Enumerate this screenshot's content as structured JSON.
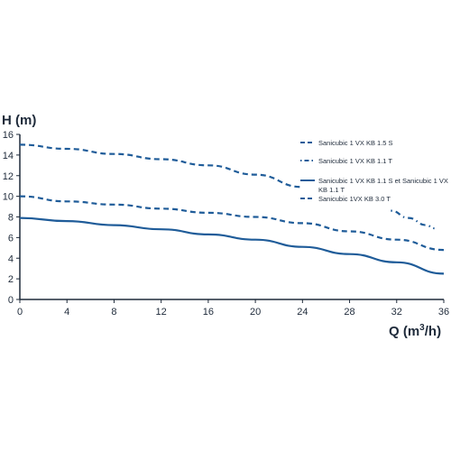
{
  "chart_data": {
    "type": "line",
    "ylabel": "H (m)",
    "xlabel_main": "Q (m",
    "xlabel_sup": "3",
    "xlabel_end": "/h)",
    "xlim": [
      0,
      36
    ],
    "ylim": [
      0,
      16
    ],
    "x_ticks": [
      "0",
      "4",
      "8",
      "12",
      "16",
      "20",
      "24",
      "28",
      "32",
      "36"
    ],
    "y_ticks": [
      "0",
      "2",
      "4",
      "6",
      "8",
      "10",
      "12",
      "14",
      "16"
    ],
    "grid": false,
    "legend_position": "top-right",
    "series": [
      {
        "name": "Sanicubic 1 VX KB 1.5 S",
        "style": "dashed",
        "color": "#1f5c99",
        "points": [
          [
            0,
            15.0
          ],
          [
            4,
            14.6
          ],
          [
            8,
            14.1
          ],
          [
            12,
            13.6
          ],
          [
            16,
            13.0
          ],
          [
            20,
            12.1
          ],
          [
            24,
            10.9
          ]
        ]
      },
      {
        "name": "Sanicubic 1 VX KB 1.1 T",
        "style": "dash-dot",
        "color": "#1f5c99",
        "points": [
          [
            31.5,
            8.6
          ],
          [
            33,
            7.9
          ],
          [
            34.5,
            7.2
          ],
          [
            35.2,
            6.9
          ]
        ]
      },
      {
        "name": "Sanicubic 1 VX KB 1.1 S et Sanicubic 1 VX KB 1.1 T",
        "name_line1": "Sanicubic 1 VX KB 1.1 S et Sanicubic 1 VX",
        "name_line2": "KB 1.1 T",
        "style": "solid",
        "color": "#1f5c99",
        "points": [
          [
            0,
            7.9
          ],
          [
            4,
            7.6
          ],
          [
            8,
            7.2
          ],
          [
            12,
            6.8
          ],
          [
            16,
            6.3
          ],
          [
            20,
            5.8
          ],
          [
            24,
            5.1
          ],
          [
            28,
            4.4
          ],
          [
            32,
            3.6
          ],
          [
            36,
            2.5
          ]
        ]
      },
      {
        "name": "Sanicubic 1VX KB 3.0 T",
        "style": "dashed",
        "color": "#1f5c99",
        "points": [
          [
            0,
            10.0
          ],
          [
            4,
            9.5
          ],
          [
            8,
            9.2
          ],
          [
            12,
            8.8
          ],
          [
            16,
            8.4
          ],
          [
            20,
            8.0
          ],
          [
            24,
            7.4
          ],
          [
            28,
            6.6
          ],
          [
            32,
            5.8
          ],
          [
            36,
            4.8
          ]
        ]
      }
    ]
  }
}
